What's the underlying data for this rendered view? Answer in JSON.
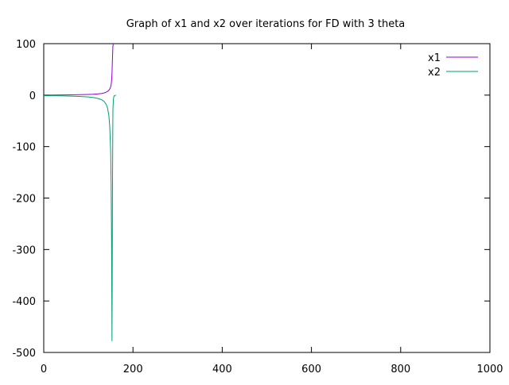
{
  "chart_data": {
    "type": "line",
    "title": "Graph of x1 and x2 over iterations for FD with 3 theta",
    "xlabel": "",
    "ylabel": "",
    "xlim": [
      0,
      1000
    ],
    "ylim": [
      -500,
      100
    ],
    "xticks": [
      0,
      200,
      400,
      600,
      800,
      1000
    ],
    "yticks": [
      100,
      0,
      -100,
      -200,
      -300,
      -400,
      -500
    ],
    "xtick_labels": [
      "0",
      "200",
      "400",
      "600",
      "800",
      "1000"
    ],
    "ytick_labels": [
      "100",
      "0",
      "-100",
      "-200",
      "-300",
      "-400",
      "-500"
    ],
    "grid": false,
    "legend_position": "top-right",
    "series": [
      {
        "name": "x1",
        "color": "#9400d3",
        "x": [
          0,
          20,
          40,
          60,
          80,
          100,
          110,
          120,
          130,
          135,
          140,
          143,
          146,
          148,
          150,
          151,
          152,
          153,
          154,
          155,
          156
        ],
        "y": [
          0,
          0.2,
          0.4,
          0.6,
          0.9,
          1.3,
          1.6,
          2.2,
          3.2,
          4.2,
          5.8,
          7.2,
          9.5,
          12,
          16,
          20,
          28,
          42,
          70,
          95,
          100
        ]
      },
      {
        "name": "x2",
        "color": "#009e73",
        "x": [
          0,
          20,
          40,
          60,
          80,
          100,
          110,
          120,
          130,
          135,
          140,
          143,
          146,
          148,
          150,
          151,
          152,
          153,
          154,
          155,
          156,
          157,
          158,
          162
        ],
        "y": [
          -1,
          -1.2,
          -1.5,
          -1.9,
          -2.5,
          -3.5,
          -4.5,
          -6,
          -9,
          -12,
          -18,
          -25,
          -40,
          -62,
          -110,
          -170,
          -280,
          -478,
          -200,
          -30,
          -10,
          -3,
          -1,
          0
        ]
      }
    ]
  }
}
